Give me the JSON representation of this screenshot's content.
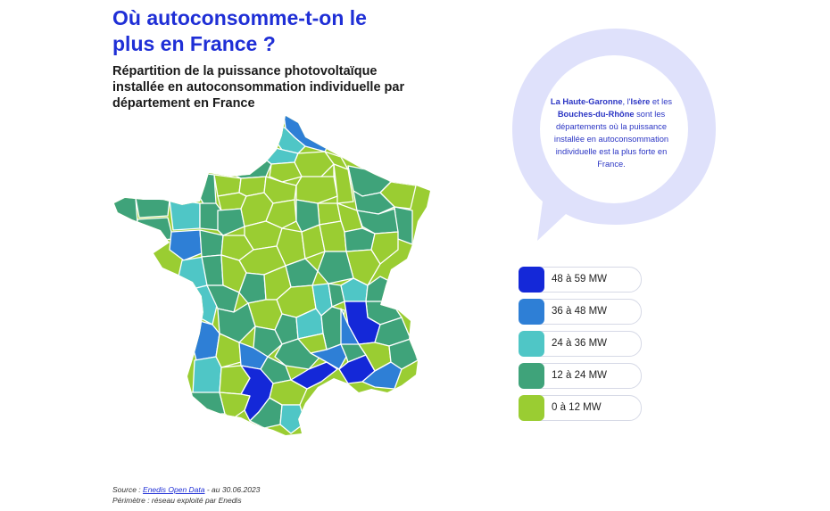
{
  "title": "Où autoconsomme-t-on le plus en France ?",
  "subtitle": "Répartition de la puissance photovoltaïque installée en autoconsommation individuelle par département en France",
  "callout": {
    "part1_bold": "La Haute-Garonne",
    "part2": ", l'",
    "part3_bold": "Isère",
    "part4": " et les ",
    "part5_bold": "Bouches-du-Rhône",
    "part6": " sont les départements où la puissance installée en autoconsommation individuelle est la plus forte en France."
  },
  "legend": [
    {
      "label": "48 à 59 MW",
      "color": "#1428d8"
    },
    {
      "label": "36 à 48 MW",
      "color": "#2e7fd6"
    },
    {
      "label": "24 à 36 MW",
      "color": "#4fc6c6"
    },
    {
      "label": "12 à 24 MW",
      "color": "#3fa37a"
    },
    {
      "label": "0 à 12 MW",
      "color": "#9acd32"
    }
  ],
  "source": {
    "prefix": "Source : ",
    "link": "Enedis Open Data",
    "suffix": " - au 30.06.2023",
    "perimeter": "Périmètre : réseau exploité par Enedis"
  },
  "colors": {
    "title": "#1f2fd6",
    "bubble": "#dfe1fb",
    "level_5": "#1428d8",
    "level_4": "#2e7fd6",
    "level_3": "#4fc6c6",
    "level_2": "#3fa37a",
    "level_1": "#9acd32"
  }
}
